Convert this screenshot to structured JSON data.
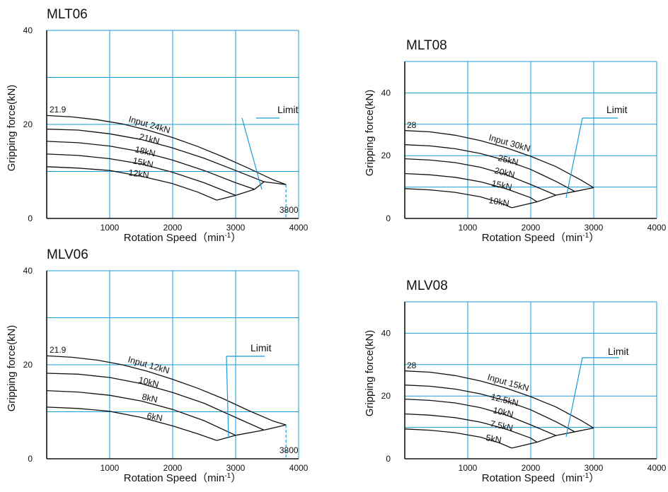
{
  "chart_data": [
    {
      "type": "line",
      "title": "MLT06",
      "xlabel": "Rotation Speed（min",
      "xlabel_sup": "-1",
      "xlabel_end": "）",
      "ylabel": "Gripping force(kN)",
      "xlim": [
        0,
        4000
      ],
      "ylim": [
        0,
        40
      ],
      "xticks": [
        1000,
        2000,
        3000,
        4000
      ],
      "xtick_labels": [
        "1000",
        "2000",
        "3000",
        "4000"
      ],
      "yticks": [
        0,
        20,
        40
      ],
      "ytick_labels": [
        "0",
        "20",
        "40"
      ],
      "grid": true,
      "grid_color": "#1a9bd7",
      "series_color": "#111111",
      "x_end_marker": 3800,
      "x_end_label": "3800",
      "max_label": "21.9",
      "limit_label": "Limit",
      "series": [
        {
          "name": "Input 24kN",
          "label": "Input  24kN",
          "x": [
            0,
            400,
            800,
            1200,
            1600,
            2000,
            2400,
            2800,
            3200,
            3600,
            3800
          ],
          "y": [
            21.9,
            21.6,
            21.0,
            20.1,
            18.8,
            17.2,
            15.3,
            13.1,
            10.7,
            8.2,
            7.2
          ]
        },
        {
          "name": "21kN",
          "label": "21kN",
          "x": [
            0,
            500,
            1000,
            1500,
            2000,
            2500,
            3000,
            3450
          ],
          "y": [
            19.0,
            18.8,
            18.0,
            16.8,
            15.0,
            12.8,
            10.2,
            7.8
          ]
        },
        {
          "name": "18kN",
          "label": "18kN",
          "x": [
            0,
            500,
            1000,
            1500,
            2000,
            2500,
            3000,
            3300
          ],
          "y": [
            16.4,
            16.1,
            15.4,
            14.2,
            12.4,
            10.2,
            7.6,
            6.2
          ]
        },
        {
          "name": "15kN",
          "label": "15kN",
          "x": [
            0,
            500,
            1000,
            1500,
            2000,
            2500,
            3000
          ],
          "y": [
            13.7,
            13.4,
            12.7,
            11.6,
            9.8,
            7.6,
            4.9
          ]
        },
        {
          "name": "12kN",
          "label": "12kN",
          "x": [
            0,
            500,
            1000,
            1500,
            2000,
            2400,
            2700
          ],
          "y": [
            11.0,
            10.7,
            10.2,
            9.0,
            7.4,
            5.6,
            3.9
          ]
        }
      ],
      "limit_line": {
        "x": [
          2700,
          3000,
          3300,
          3450,
          3800
        ],
        "y": [
          3.9,
          4.9,
          6.2,
          7.8,
          7.2
        ]
      }
    },
    {
      "type": "line",
      "title": "MLT08",
      "xlabel": "Rotation Speed（min",
      "xlabel_sup": "-1",
      "xlabel_end": "）",
      "ylabel": "Gripping force(kN)",
      "xlim": [
        0,
        4000
      ],
      "ylim": [
        0,
        50
      ],
      "xticks": [
        1000,
        2000,
        3000,
        4000
      ],
      "xtick_labels": [
        "1000",
        "2000",
        "3000",
        "4000"
      ],
      "yticks": [
        0,
        20,
        40
      ],
      "ytick_labels": [
        "0",
        "20",
        "40"
      ],
      "grid": true,
      "grid_color": "#1a9bd7",
      "series_color": "#111111",
      "max_label": "28",
      "limit_label": "Limit",
      "series": [
        {
          "name": "Input 30kN",
          "label": "Input  30kN",
          "x": [
            0,
            400,
            800,
            1200,
            1600,
            2000,
            2400,
            2800,
            3000
          ],
          "y": [
            28.0,
            27.6,
            26.5,
            24.8,
            22.6,
            19.8,
            16.5,
            12.2,
            9.8
          ]
        },
        {
          "name": "25kN",
          "label": "25kN",
          "x": [
            0,
            400,
            800,
            1200,
            1600,
            2000,
            2400,
            2700
          ],
          "y": [
            23.5,
            23.1,
            22.2,
            20.7,
            18.5,
            15.6,
            11.8,
            8.6
          ]
        },
        {
          "name": "20kN",
          "label": "20kN",
          "x": [
            0,
            400,
            800,
            1200,
            1600,
            2000,
            2400
          ],
          "y": [
            19.0,
            18.6,
            17.8,
            16.3,
            14.0,
            10.8,
            7.4
          ]
        },
        {
          "name": "15kN",
          "label": "15kN",
          "x": [
            0,
            400,
            800,
            1200,
            1600,
            2000,
            2100
          ],
          "y": [
            14.3,
            13.9,
            13.1,
            11.7,
            9.5,
            6.6,
            5.3
          ]
        },
        {
          "name": "10kN",
          "label": "10kN",
          "x": [
            0,
            400,
            800,
            1200,
            1500,
            1700
          ],
          "y": [
            9.5,
            9.1,
            8.3,
            6.9,
            5.1,
            3.4
          ]
        }
      ],
      "limit_line": {
        "x": [
          1700,
          2100,
          2400,
          2700,
          3000
        ],
        "y": [
          3.4,
          5.3,
          7.4,
          8.6,
          9.8
        ]
      }
    },
    {
      "type": "line",
      "title": "MLV06",
      "xlabel": "Rotation Speed（min",
      "xlabel_sup": "-1",
      "xlabel_end": "）",
      "ylabel": "Gripping force(kN)",
      "xlim": [
        0,
        4000
      ],
      "ylim": [
        0,
        40
      ],
      "xticks": [
        1000,
        2000,
        3000,
        4000
      ],
      "xtick_labels": [
        "1000",
        "2000",
        "3000",
        "4000"
      ],
      "yticks": [
        0,
        20,
        40
      ],
      "ytick_labels": [
        "0",
        "20",
        "40"
      ],
      "grid": true,
      "grid_color": "#1a9bd7",
      "series_color": "#111111",
      "x_end_marker": 3800,
      "x_end_label": "3800",
      "max_label": "21.9",
      "limit_label": "Limit",
      "series": [
        {
          "name": "Input 12kN",
          "label": "Input  12kN",
          "x": [
            0,
            400,
            800,
            1200,
            1600,
            2000,
            2400,
            2800,
            3200,
            3600,
            3800
          ],
          "y": [
            21.9,
            21.6,
            21.0,
            20.0,
            18.6,
            16.9,
            15.0,
            12.8,
            10.3,
            8.0,
            7.2
          ]
        },
        {
          "name": "10kN",
          "label": "10kN",
          "x": [
            0,
            500,
            1000,
            1500,
            2000,
            2500,
            3000,
            3450
          ],
          "y": [
            18.2,
            18.0,
            17.3,
            16.0,
            14.1,
            11.8,
            8.8,
            6.1
          ]
        },
        {
          "name": "8kN",
          "label": "8kN",
          "x": [
            0,
            500,
            1000,
            1500,
            2000,
            2500,
            3000
          ],
          "y": [
            14.5,
            14.2,
            13.5,
            12.3,
            10.5,
            8.1,
            5.0
          ]
        },
        {
          "name": "6kN",
          "label": "6kN",
          "x": [
            0,
            500,
            1000,
            1500,
            2000,
            2400,
            2700
          ],
          "y": [
            11.0,
            10.7,
            10.1,
            8.8,
            7.0,
            5.3,
            3.9
          ]
        }
      ],
      "limit_line": {
        "x": [
          2700,
          3000,
          3450,
          3800
        ],
        "y": [
          3.9,
          5.0,
          6.1,
          7.2
        ]
      }
    },
    {
      "type": "line",
      "title": "MLV08",
      "xlabel": "Rotation Speed（min",
      "xlabel_sup": "-1",
      "xlabel_end": "）",
      "ylabel": "Gripping force(kN)",
      "xlim": [
        0,
        4000
      ],
      "ylim": [
        0,
        50
      ],
      "xticks": [
        1000,
        2000,
        3000,
        4000
      ],
      "xtick_labels": [
        "1000",
        "2000",
        "3000",
        "4000"
      ],
      "yticks": [
        0,
        20,
        40
      ],
      "ytick_labels": [
        "0",
        "20",
        "40"
      ],
      "grid": true,
      "grid_color": "#1a9bd7",
      "series_color": "#111111",
      "max_label": "28",
      "limit_label": "Limit",
      "series": [
        {
          "name": "Input 15kN",
          "label": "Input  15kN",
          "x": [
            0,
            400,
            800,
            1200,
            1600,
            2000,
            2400,
            2800,
            3000
          ],
          "y": [
            28.0,
            27.6,
            26.5,
            24.8,
            22.6,
            19.8,
            16.5,
            12.2,
            9.8
          ]
        },
        {
          "name": "12.5kN",
          "label": "12.5kN",
          "x": [
            0,
            400,
            800,
            1200,
            1600,
            2000,
            2400,
            2700
          ],
          "y": [
            23.5,
            23.1,
            22.2,
            20.7,
            18.5,
            15.6,
            11.8,
            8.6
          ]
        },
        {
          "name": "10kN",
          "label": "10kN",
          "x": [
            0,
            400,
            800,
            1200,
            1600,
            2000,
            2400
          ],
          "y": [
            19.0,
            18.6,
            17.8,
            16.3,
            14.0,
            10.8,
            7.4
          ]
        },
        {
          "name": "7.5kN",
          "label": "7.5kN",
          "x": [
            0,
            400,
            800,
            1200,
            1600,
            2000,
            2100
          ],
          "y": [
            14.3,
            13.9,
            13.1,
            11.7,
            9.5,
            6.6,
            5.3
          ]
        },
        {
          "name": "5kN",
          "label": "5kN",
          "x": [
            0,
            400,
            800,
            1200,
            1500,
            1700
          ],
          "y": [
            9.5,
            9.1,
            8.3,
            6.9,
            5.1,
            3.4
          ]
        }
      ],
      "limit_line": {
        "x": [
          1700,
          2100,
          2400,
          2700,
          3000
        ],
        "y": [
          3.4,
          5.3,
          7.4,
          8.6,
          9.8
        ]
      }
    }
  ]
}
